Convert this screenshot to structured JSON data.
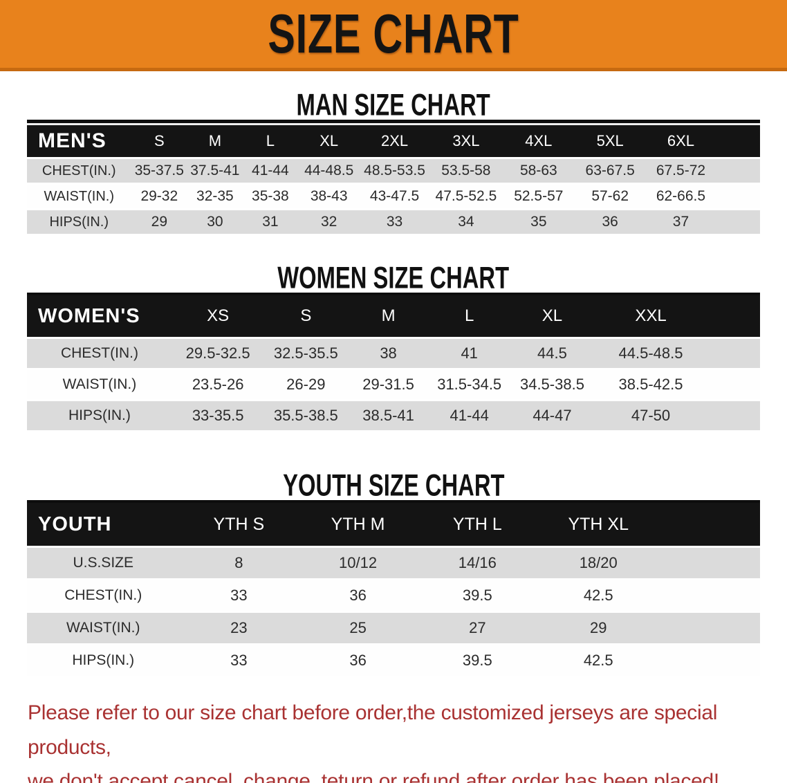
{
  "banner": {
    "title": "SIZE CHART"
  },
  "sections": {
    "men": {
      "heading": "MAN SIZE CHART"
    },
    "women": {
      "heading": "WOMEN SIZE CHART"
    },
    "youth": {
      "heading": "YOUTH SIZE CHART"
    }
  },
  "tables": {
    "men": {
      "label": "MEN'S",
      "sizes": [
        "S",
        "M",
        "L",
        "XL",
        "2XL",
        "3XL",
        "4XL",
        "5XL",
        "6XL"
      ],
      "rows": [
        {
          "label": "CHEST(IN.)",
          "values": [
            "35-37.5",
            "37.5-41",
            "41-44",
            "44-48.5",
            "48.5-53.5",
            "53.5-58",
            "58-63",
            "63-67.5",
            "67.5-72"
          ]
        },
        {
          "label": "WAIST(IN.)",
          "values": [
            "29-32",
            "32-35",
            "35-38",
            "38-43",
            "43-47.5",
            "47.5-52.5",
            "52.5-57",
            "57-62",
            "62-66.5"
          ]
        },
        {
          "label": "HIPS(IN.)",
          "values": [
            "29",
            "30",
            "31",
            "32",
            "33",
            "34",
            "35",
            "36",
            "37"
          ]
        }
      ]
    },
    "women": {
      "label": "WOMEN'S",
      "sizes": [
        "XS",
        "S",
        "M",
        "L",
        "XL",
        "XXL"
      ],
      "rows": [
        {
          "label": "CHEST(IN.)",
          "values": [
            "29.5-32.5",
            "32.5-35.5",
            "38",
            "41",
            "44.5",
            "44.5-48.5"
          ]
        },
        {
          "label": "WAIST(IN.)",
          "values": [
            "23.5-26",
            "26-29",
            "29-31.5",
            "31.5-34.5",
            "34.5-38.5",
            "38.5-42.5"
          ]
        },
        {
          "label": "HIPS(IN.)",
          "values": [
            "33-35.5",
            "35.5-38.5",
            "38.5-41",
            "41-44",
            "44-47",
            "47-50"
          ]
        }
      ]
    },
    "youth": {
      "label": "YOUTH",
      "sizes": [
        "YTH S",
        "YTH M",
        "YTH L",
        "YTH XL"
      ],
      "rows": [
        {
          "label": "U.S.SIZE",
          "values": [
            "8",
            "10/12",
            "14/16",
            "18/20"
          ]
        },
        {
          "label": "CHEST(IN.)",
          "values": [
            "33",
            "36",
            "39.5",
            "42.5"
          ]
        },
        {
          "label": "WAIST(IN.)",
          "values": [
            "23",
            "25",
            "27",
            "29"
          ]
        },
        {
          "label": "HIPS(IN.)",
          "values": [
            "33",
            "36",
            "39.5",
            "42.5"
          ]
        }
      ]
    }
  },
  "notice": {
    "line1": "Please refer to our size chart before order,the customized jerseys are special products,",
    "line2": "we don't accept cancel, change, teturn or refund after order has been placed!"
  },
  "colors": {
    "banner_bg": "#E8821C",
    "banner_border": "#C66A10",
    "header_bar": "#141414",
    "row_alt_gray": "#DBDBDB",
    "row_white": "#FEFEFE",
    "notice_red": "#A93232",
    "heading_black": "#111111"
  }
}
